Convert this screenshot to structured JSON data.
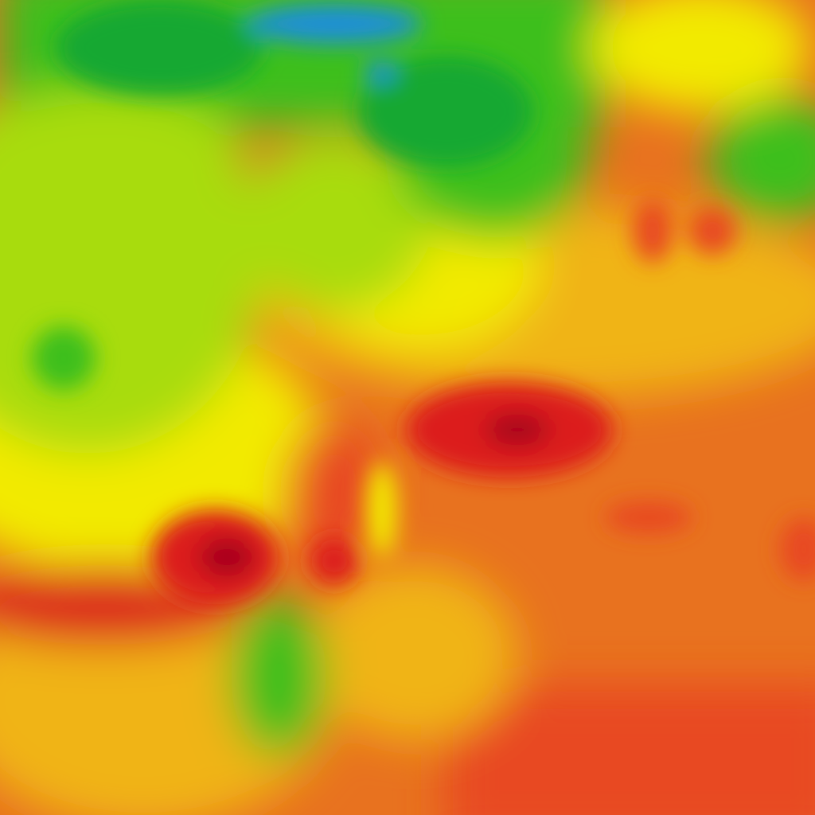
{
  "map": {
    "type": "temperature-heatmap",
    "palette": {
      "blue": "#1e8fd8",
      "dark_green": "#12a832",
      "green": "#3cbf1e",
      "yellow_green": "#a8dc0a",
      "yellow": "#f2ea00",
      "light_orange": "#f0b418",
      "orange": "#e8721f",
      "red_orange": "#e84a20",
      "red": "#dc1a1e",
      "dark_red": "#a8001a"
    }
  }
}
